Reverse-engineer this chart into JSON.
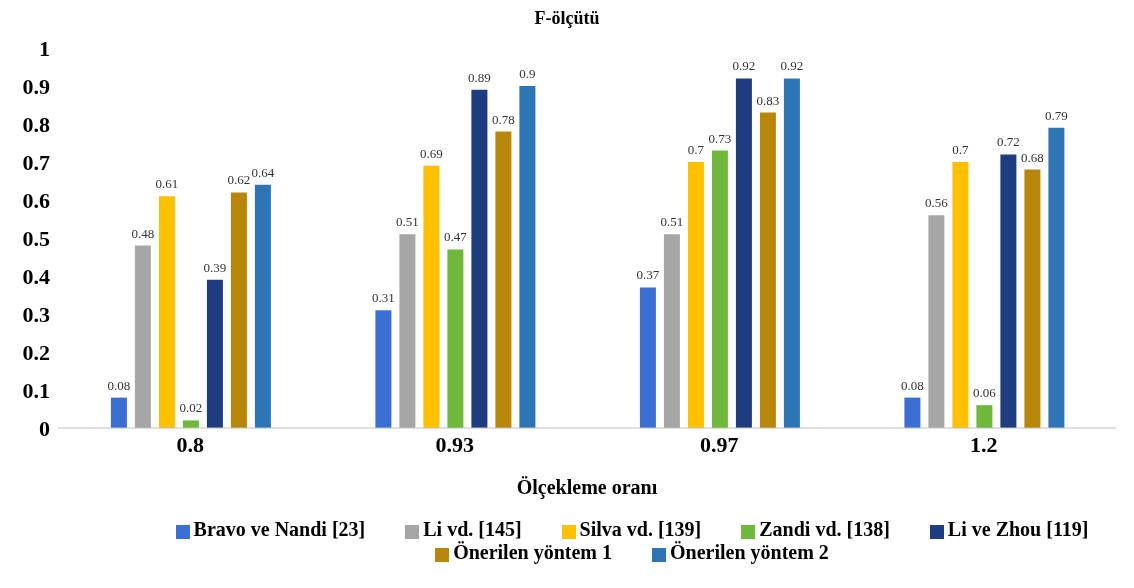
{
  "chart_data": {
    "type": "bar",
    "title": "F-ölçütü",
    "xlabel": "Ölçekleme oranı",
    "categories": [
      "0.8",
      "0.93",
      "0.97",
      "1.2"
    ],
    "series": [
      {
        "name": "Bravo ve Nandi [23]",
        "color": "#3b6fd4",
        "values": [
          0.08,
          0.31,
          0.37,
          0.08
        ]
      },
      {
        "name": "Li vd. [145]",
        "color": "#a6a6a6",
        "values": [
          0.48,
          0.51,
          0.51,
          0.56
        ]
      },
      {
        "name": "Silva vd. [139]",
        "color": "#ffc000",
        "values": [
          0.61,
          0.69,
          0.7,
          0.7
        ]
      },
      {
        "name": "Zandi vd. [138]",
        "color": "#70b83c",
        "values": [
          0.02,
          0.47,
          0.73,
          0.06
        ]
      },
      {
        "name": "Li ve Zhou [119]",
        "color": "#1f3c80",
        "values": [
          0.39,
          0.89,
          0.92,
          0.72
        ]
      },
      {
        "name": "Önerilen yöntem 1",
        "color": "#b8860b",
        "values": [
          0.62,
          0.78,
          0.83,
          0.68
        ]
      },
      {
        "name": "Önerilen yöntem 2",
        "color": "#2e75b6",
        "values": [
          0.64,
          0.9,
          0.92,
          0.79
        ]
      }
    ],
    "ylim": [
      0,
      1
    ],
    "yticks": [
      0,
      0.1,
      0.2,
      0.3,
      0.4,
      0.5,
      0.6,
      0.7,
      0.8,
      0.9,
      1
    ],
    "grid": false,
    "legend": "bottom",
    "data_labels": true
  }
}
